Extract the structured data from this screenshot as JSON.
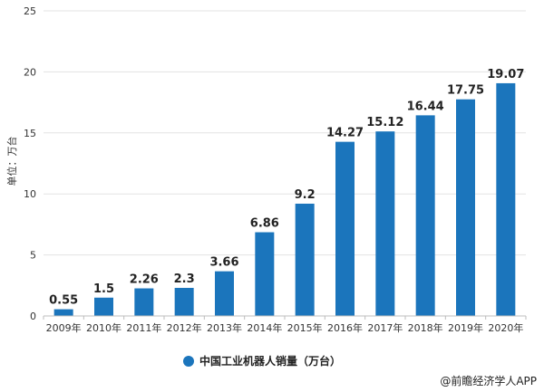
{
  "chart_data": {
    "type": "bar",
    "categories": [
      "2009年",
      "2010年",
      "2011年",
      "2012年",
      "2013年",
      "2014年",
      "2015年",
      "2016年",
      "2017年",
      "2018年",
      "2019年",
      "2020年"
    ],
    "series": [
      {
        "name": "中国工业机器人销量（万台）",
        "color": "#1b75bc",
        "values": [
          0.55,
          1.5,
          2.26,
          2.3,
          3.66,
          6.86,
          9.2,
          14.27,
          15.12,
          16.44,
          17.75,
          19.07
        ],
        "labels": [
          "0.55",
          "1.5",
          "2.26",
          "2.3",
          "3.66",
          "6.86",
          "9.2",
          "14.27",
          "15.12",
          "16.44",
          "17.75",
          "19.07"
        ]
      }
    ],
    "ylabel": "单位：万台",
    "ylim": [
      0,
      25
    ],
    "yticks": [
      0,
      5,
      10,
      15,
      20,
      25
    ],
    "grid": true,
    "legend_position": "bottom-center"
  },
  "source": "@前瞻经济学人APP",
  "colors": {
    "bar": "#1b75bc",
    "grid": "#e3e3e3",
    "axis": "#bdbdbd"
  }
}
